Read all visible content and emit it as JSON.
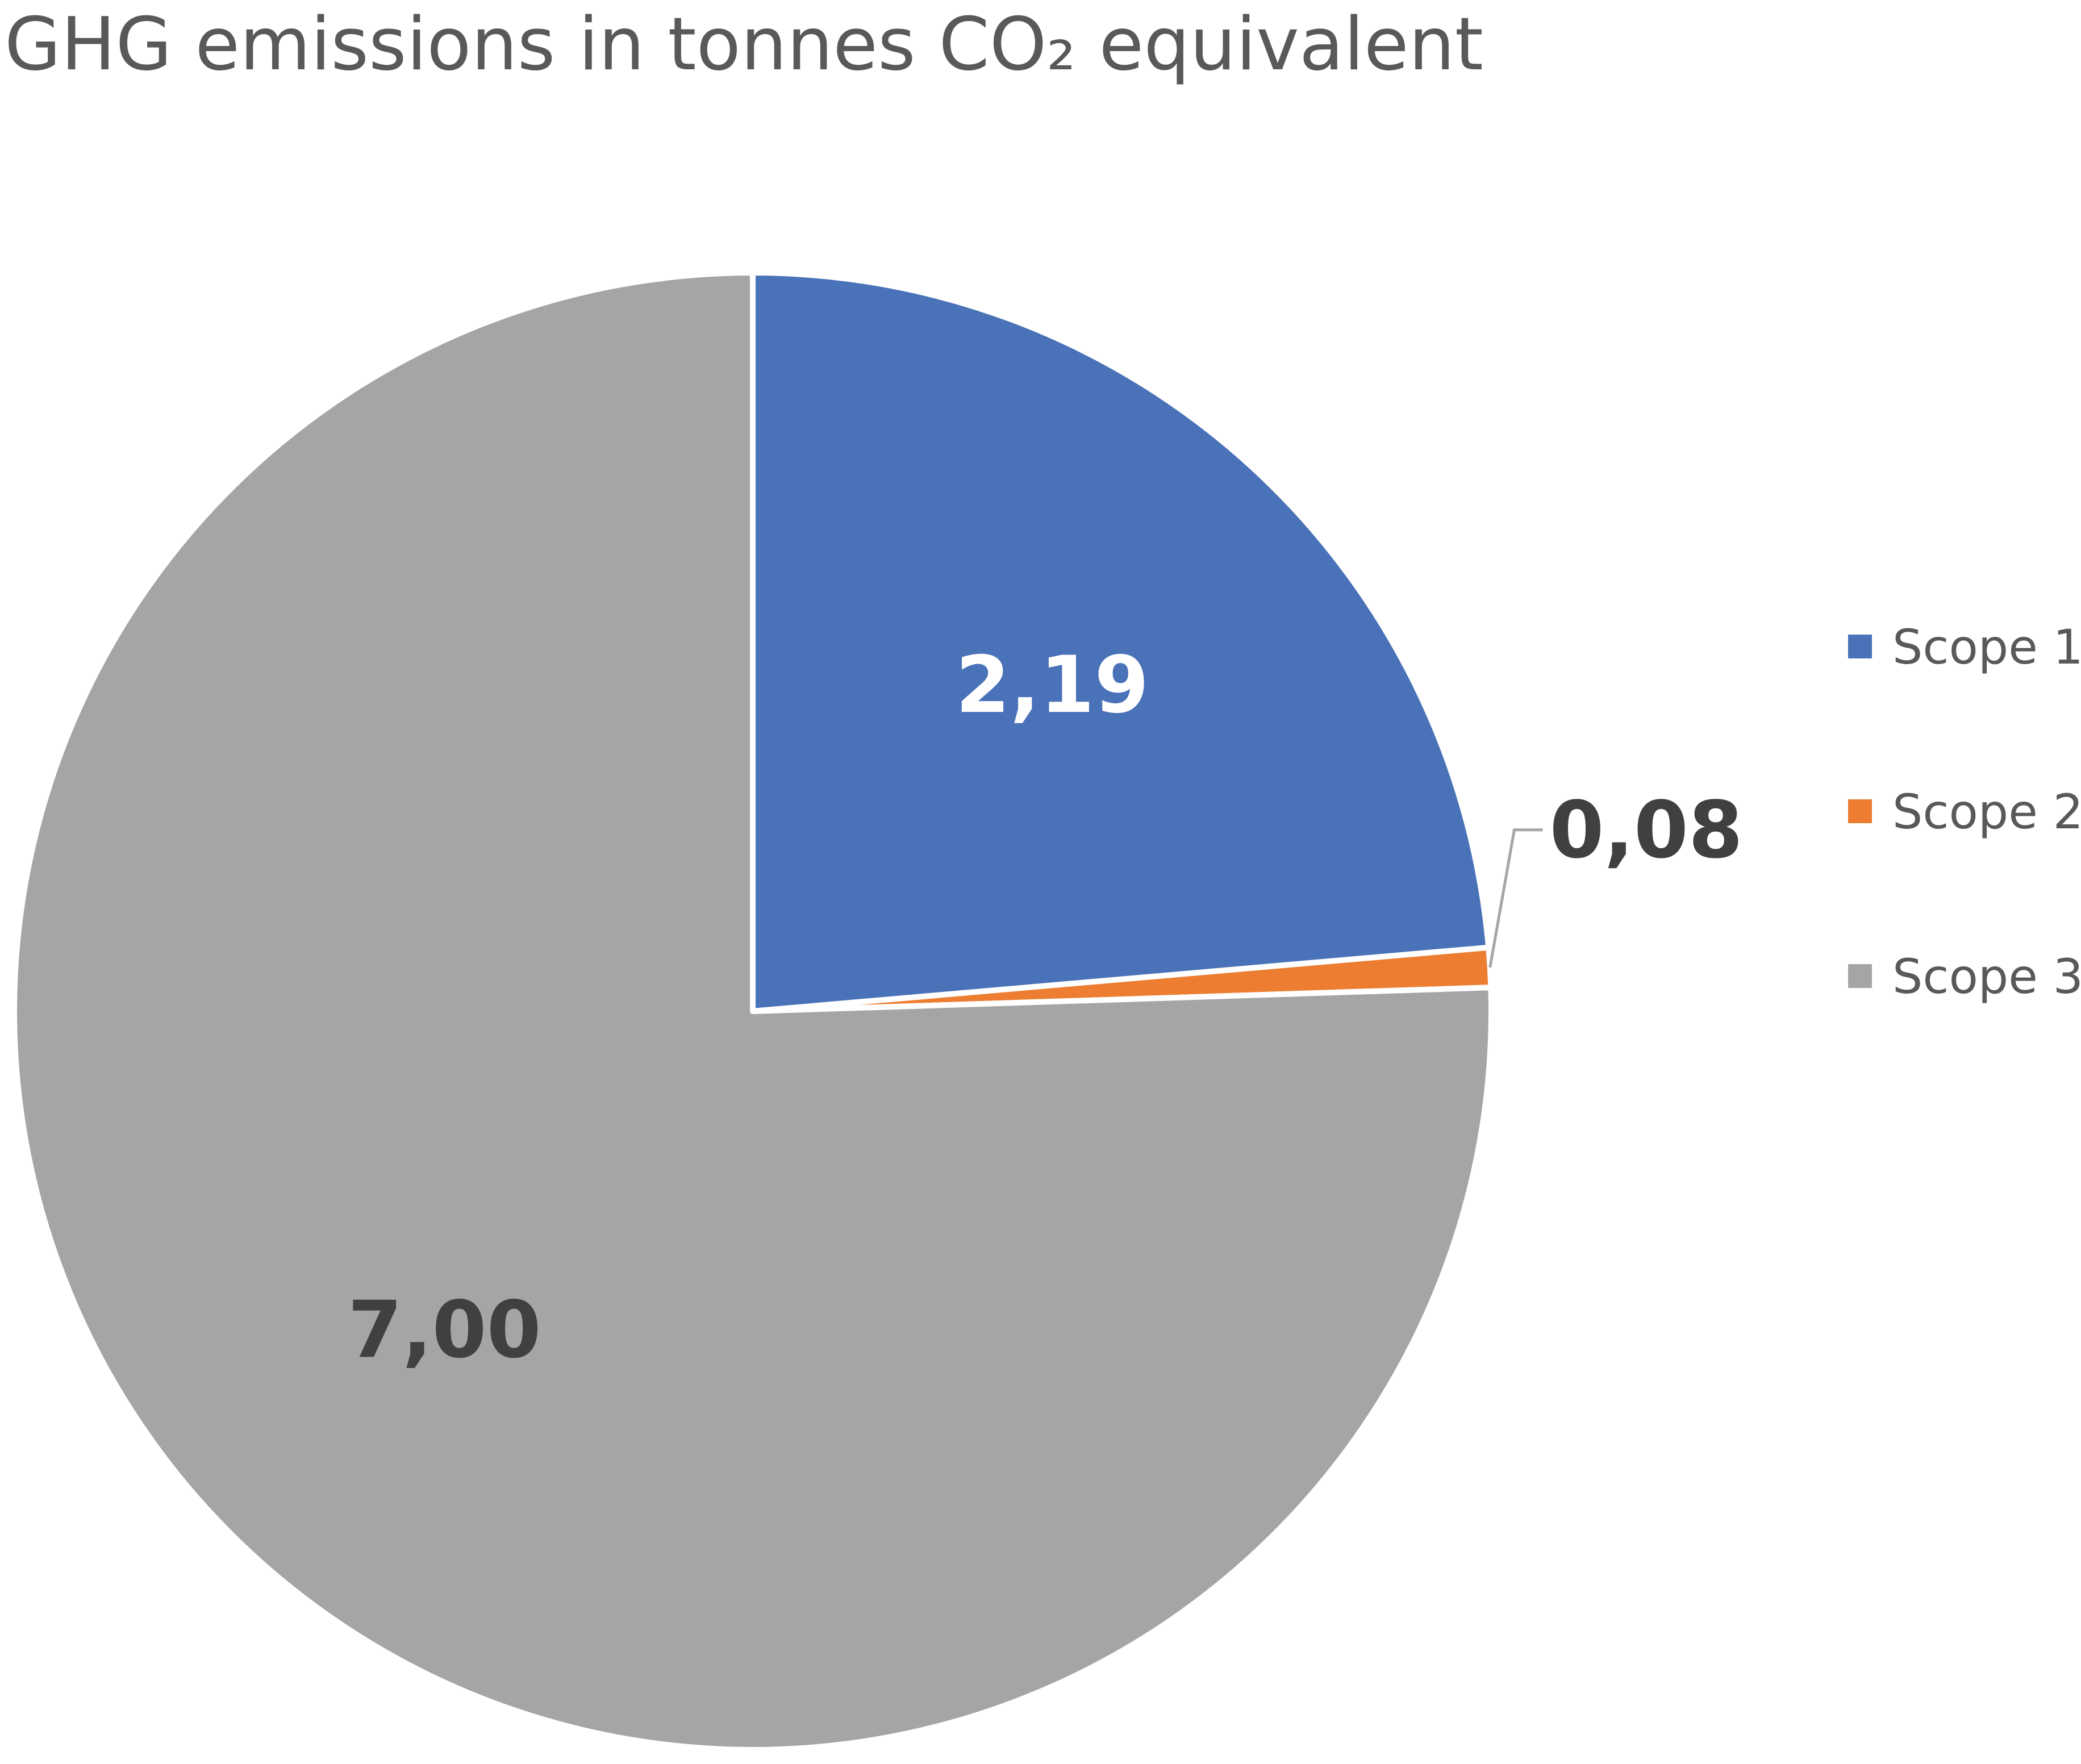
{
  "chart_data": {
    "type": "pie",
    "title": "GHG emissions in tonnes CO₂ equivalent",
    "categories": [
      "Scope 1",
      "Scope 2",
      "Scope 3"
    ],
    "values": [
      2.19,
      0.08,
      7.0
    ],
    "labels": [
      "2,19",
      "0,08",
      "7,00"
    ],
    "colors": [
      "#4a72b8",
      "#ed7d31",
      "#a5a5a5"
    ],
    "label_colors": [
      "#ffffff",
      "#404040",
      "#404040"
    ],
    "start_angle_deg": 0,
    "direction": "clockwise",
    "legend": {
      "position": "right",
      "entries": [
        "Scope 1",
        "Scope 2",
        "Scope 3"
      ]
    }
  }
}
